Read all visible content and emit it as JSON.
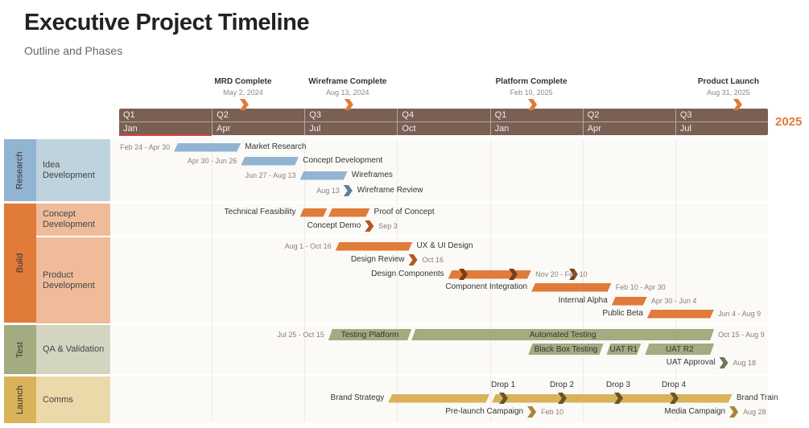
{
  "header": {
    "title": "Executive Project Timeline",
    "subtitle": "Outline and Phases"
  },
  "colors": {
    "research": "#92b4d3",
    "build": "#e07b3a",
    "test": "#a3ab80",
    "launch": "#d9b25a",
    "scale": "#7a5f53",
    "milestone": "#e07b3a",
    "year": "#e07b3a"
  },
  "milestones": [
    {
      "title": "MRD Complete",
      "date": "May 2, 2024",
      "on": "2024-05-02"
    },
    {
      "title": "Wireframe Complete",
      "date": "Aug 13, 2024",
      "on": "2024-08-13"
    },
    {
      "title": "Platform Complete",
      "date": "Feb 10, 2025",
      "on": "2025-02-10"
    },
    {
      "title": "Product Launch",
      "date": "Aug 31, 2025",
      "on": "2025-08-31"
    }
  ],
  "scale": {
    "quarters": [
      "Q1",
      "Q2",
      "Q3",
      "Q4",
      "Q1",
      "Q2",
      "Q3"
    ],
    "months": [
      "Jan",
      "Apr",
      "Jul",
      "Oct",
      "Jan",
      "Apr",
      "Jul"
    ],
    "start": "2024-01-01",
    "end": "2025-10-01",
    "year_label": "2025"
  },
  "swimlanes": [
    {
      "group": "Research",
      "color": "#92b4d3",
      "subcolor": "#bed3dd",
      "subs": [
        "Idea Development"
      ]
    },
    {
      "group": "Build",
      "color": "#e07b3a",
      "subcolor": "#efbb9a",
      "subs": [
        "Concept Development",
        "Product Development"
      ]
    },
    {
      "group": "Test",
      "color": "#a3ab80",
      "subcolor": "#d3d5c0",
      "subs": [
        "QA & Validation"
      ]
    },
    {
      "group": "Launch",
      "color": "#d9b25a",
      "subcolor": "#ecd9a9",
      "subs": [
        "Comms"
      ]
    }
  ],
  "tasks": [
    {
      "name": "Market Research",
      "dates": "Feb 24 - Apr 30",
      "start": "2024-02-24",
      "end": "2024-04-30",
      "color": "#92b4d3"
    },
    {
      "name": "Concept Development",
      "dates": "Apr 30 - Jun 26",
      "start": "2024-04-30",
      "end": "2024-06-26",
      "color": "#92b4d3"
    },
    {
      "name": "Wireframes",
      "dates": "Jun 27 - Aug 13",
      "start": "2024-06-27",
      "end": "2024-08-13",
      "color": "#92b4d3"
    },
    {
      "name": "Wireframe Review",
      "dates": "Aug 13",
      "on": "2024-08-13",
      "color": "#5f7f9c",
      "milestone": true
    },
    {
      "name": "Technical Feasibility",
      "start": "2024-06-27",
      "end": "2024-07-24",
      "color": "#e07b3a"
    },
    {
      "name": "Proof of Concept",
      "start": "2024-07-25",
      "end": "2024-09-04",
      "color": "#e07b3a"
    },
    {
      "name": "Concept Demo",
      "dates": "Sep 3",
      "on": "2024-09-03",
      "color": "#b5571f",
      "milestone": true
    },
    {
      "name": "UX & UI Design",
      "dates": "Aug 1 - Oct 16",
      "start": "2024-08-01",
      "end": "2024-10-16",
      "color": "#e07b3a"
    },
    {
      "name": "Design Review",
      "dates": "Oct 16",
      "on": "2024-10-16",
      "color": "#b5571f",
      "milestone": true
    },
    {
      "name": "Design Components",
      "dates": "Nov 20 - Feb 10",
      "start": "2024-11-20",
      "end": "2025-02-10",
      "color": "#e07b3a"
    },
    {
      "name": "Component Integration",
      "dates": "Feb 10 - Apr 30",
      "start": "2025-02-10",
      "end": "2025-04-30",
      "color": "#e07b3a"
    },
    {
      "name": "Internal Alpha",
      "dates": "Apr 30 - Jun 4",
      "start": "2025-04-30",
      "end": "2025-06-04",
      "color": "#e07b3a"
    },
    {
      "name": "Public Beta",
      "dates": "Jun 4 - Aug 9",
      "start": "2025-06-04",
      "end": "2025-08-09",
      "color": "#e07b3a"
    },
    {
      "name": "Testing Platform",
      "dates": "Jul 25 - Oct 15",
      "start": "2024-07-25",
      "end": "2024-10-15",
      "color": "#a3ab80"
    },
    {
      "name": "Automated Testing",
      "dates": "Oct 15 - Aug 9",
      "start": "2024-10-15",
      "end": "2025-08-09",
      "color": "#a3ab80"
    },
    {
      "name": "Black Box Testing",
      "start": "2025-02-07",
      "end": "2025-04-22",
      "color": "#a3ab80"
    },
    {
      "name": "UAT R1",
      "start": "2025-04-25",
      "end": "2025-05-29",
      "color": "#a3ab80"
    },
    {
      "name": "UAT R2",
      "start": "2025-06-02",
      "end": "2025-08-09",
      "color": "#a3ab80"
    },
    {
      "name": "UAT Approval",
      "dates": "Aug 18",
      "on": "2025-08-18",
      "color": "#6f7555",
      "milestone": true
    },
    {
      "name": "Brand Strategy",
      "start": "2024-09-22",
      "end": "2024-12-31",
      "color": "#d9b25a"
    },
    {
      "name": "Brand Train",
      "start": "2025-01-02",
      "end": "2025-08-27",
      "color": "#d9b25a"
    },
    {
      "name": "Drop 1",
      "start": "2025-01-28",
      "color": "#6b5428",
      "milestone": true
    },
    {
      "name": "Drop 2",
      "start": "2025-04-23",
      "color": "#6b5428",
      "milestone": true
    },
    {
      "name": "Drop 3",
      "start": "2025-07-17",
      "color": "#6b5428",
      "milestone": true
    },
    {
      "name": "Drop 4",
      "start": "2025-10-09",
      "color": "#6b5428",
      "milestone": true
    },
    {
      "name": "Pre-launch Campaign",
      "dates": "Feb 10",
      "on": "2025-02-10",
      "color": "#a8843a",
      "milestone": true
    },
    {
      "name": "Media Campaign",
      "dates": "Aug 28",
      "on": "2025-08-28",
      "color": "#a8843a",
      "milestone": true
    }
  ]
}
